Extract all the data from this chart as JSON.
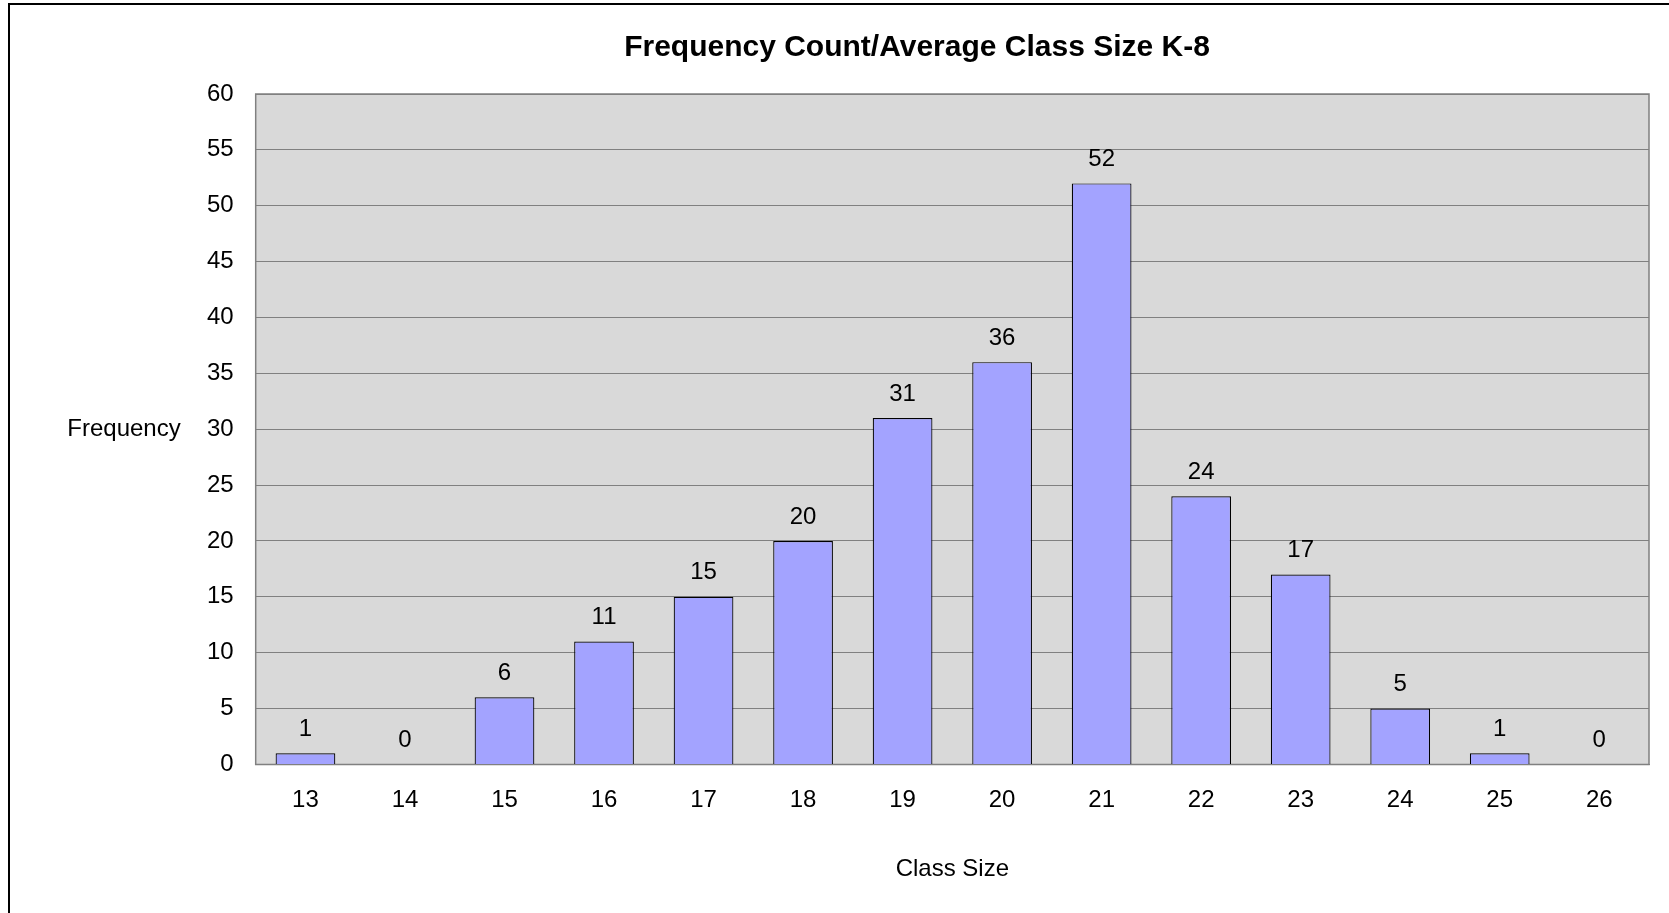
{
  "chart_data": {
    "type": "bar",
    "title": "Frequency Count/Average Class Size K-8",
    "xlabel": "Class Size",
    "ylabel": "Frequency",
    "categories": [
      "13",
      "14",
      "15",
      "16",
      "17",
      "18",
      "19",
      "20",
      "21",
      "22",
      "23",
      "24",
      "25",
      "26"
    ],
    "values": [
      1,
      0,
      6,
      11,
      15,
      20,
      31,
      36,
      52,
      24,
      17,
      5,
      1,
      0
    ],
    "color": "#a3a3ff",
    "ylim": [
      0,
      60
    ],
    "yticks": [
      0,
      5,
      10,
      15,
      20,
      25,
      30,
      35,
      40,
      45,
      50,
      55,
      60
    ],
    "grid": "y",
    "legend": false,
    "data_labels": true
  }
}
